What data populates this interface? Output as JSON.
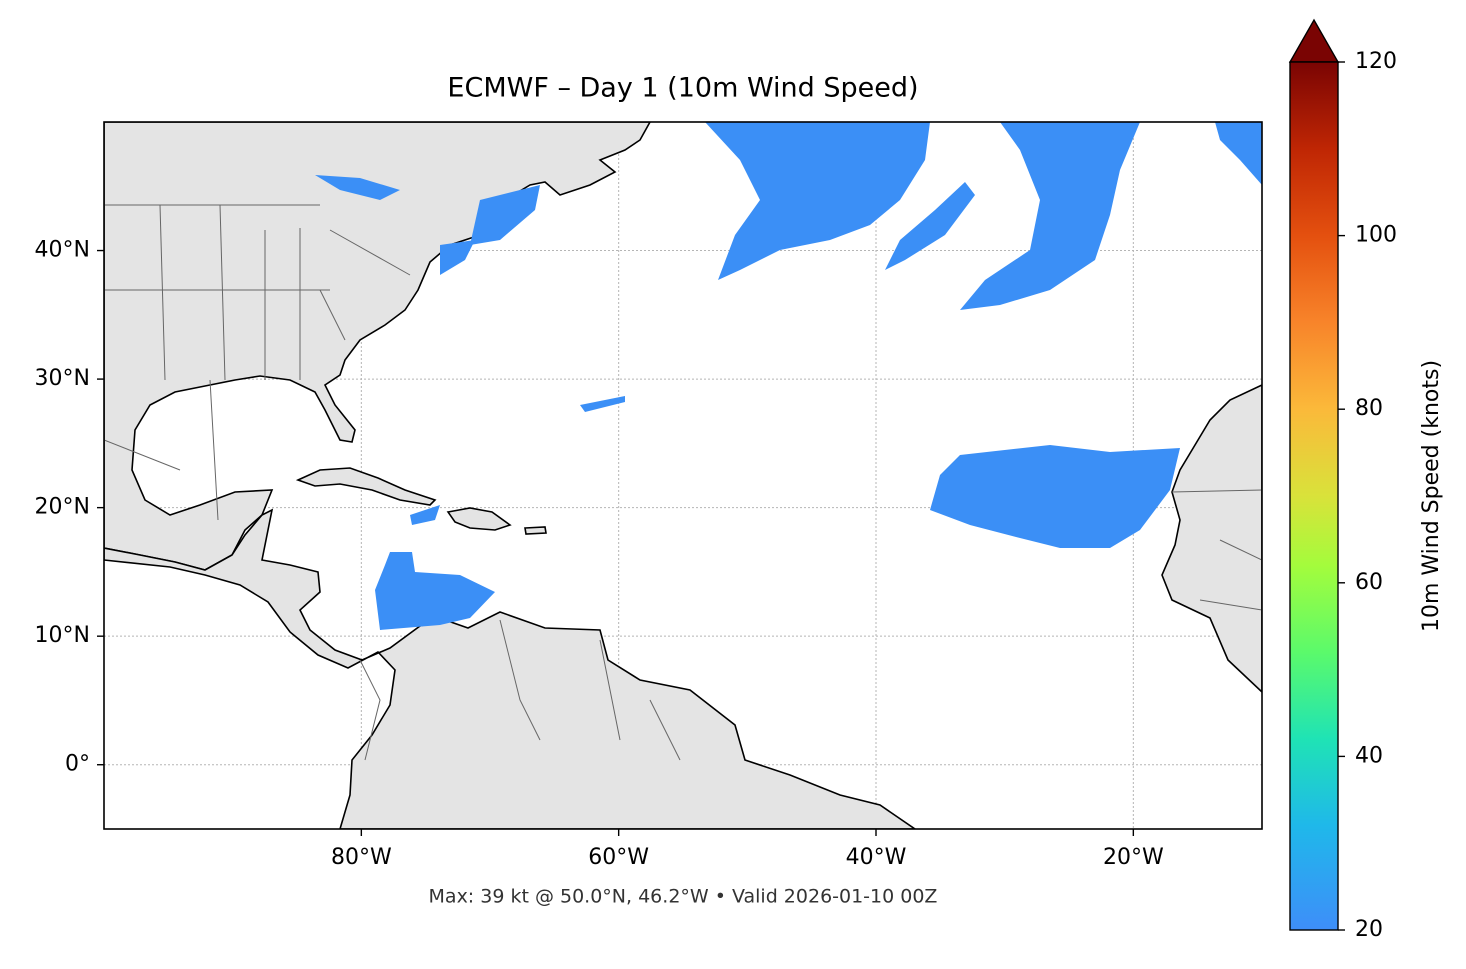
{
  "chart_data": {
    "type": "map",
    "title": "ECMWF – Day 1 (10m Wind Speed)",
    "footer": "Max: 39 kt @ 50.0°N, 46.2°W • Valid 2026-01-10 00Z",
    "xlim": [
      -100,
      -10
    ],
    "ylim": [
      -5,
      50
    ],
    "xticks": [
      {
        "value": -80,
        "label": "80°W"
      },
      {
        "value": -60,
        "label": "60°W"
      },
      {
        "value": -40,
        "label": "40°W"
      },
      {
        "value": -20,
        "label": "20°W"
      }
    ],
    "yticks": [
      {
        "value": 0,
        "label": "0°"
      },
      {
        "value": 10,
        "label": "10°N"
      },
      {
        "value": 20,
        "label": "20°N"
      },
      {
        "value": 30,
        "label": "30°N"
      },
      {
        "value": 40,
        "label": "40°N"
      }
    ],
    "grid": true,
    "colorbar": {
      "label": "10m Wind Speed (knots)",
      "lim": [
        20,
        120
      ],
      "ticks": [
        20,
        40,
        60,
        80,
        100,
        120
      ]
    }
  }
}
